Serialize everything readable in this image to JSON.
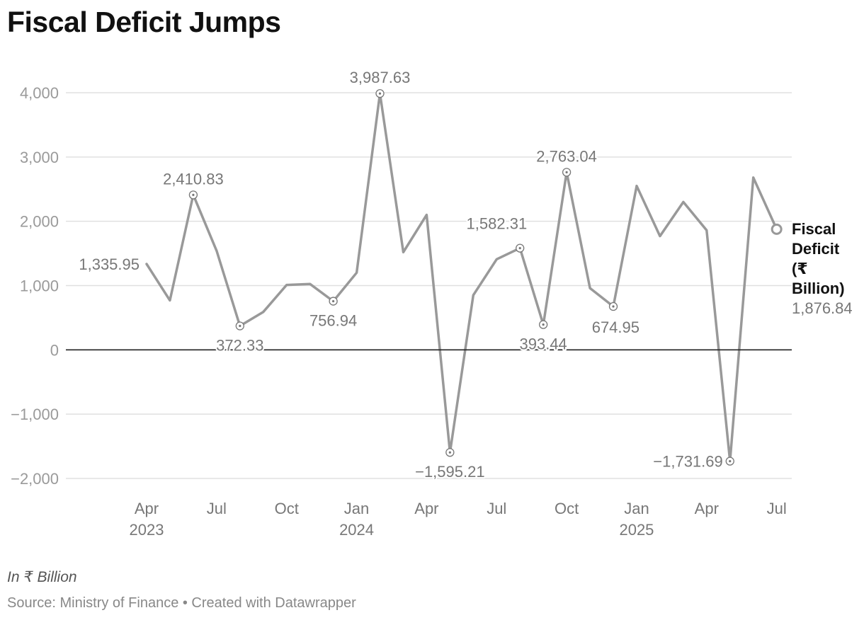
{
  "title": "Fiscal Deficit Jumps",
  "unit_note": "In ₹ Billion",
  "source": "Source: Ministry of Finance • Created with Datawrapper",
  "colors": {
    "line": "#999999",
    "grid": "#e0e0e0",
    "zero": "#222222"
  },
  "chart_data": {
    "type": "line",
    "title": "Fiscal Deficit Jumps",
    "ylim": [
      -2000,
      4000
    ],
    "yticks": [
      4000,
      3000,
      2000,
      1000,
      0,
      -1000,
      -2000
    ],
    "ytick_labels": [
      "4,000",
      "3,000",
      "2,000",
      "1,000",
      "0",
      "−1,000",
      "−2,000"
    ],
    "grid": true,
    "legend_position": "right of line end",
    "x": [
      "2023-04",
      "2023-05",
      "2023-06",
      "2023-07",
      "2023-08",
      "2023-09",
      "2023-10",
      "2023-11",
      "2023-12",
      "2024-01",
      "2024-02",
      "2024-03",
      "2024-04",
      "2024-05",
      "2024-06",
      "2024-07",
      "2024-08",
      "2024-09",
      "2024-10",
      "2024-11",
      "2024-12",
      "2025-01",
      "2025-02",
      "2025-03",
      "2025-04",
      "2025-05",
      "2025-06",
      "2025-07"
    ],
    "xticks": [
      {
        "x": "2023-04",
        "month": "Apr",
        "year": "2023"
      },
      {
        "x": "2023-07",
        "month": "Jul",
        "year": ""
      },
      {
        "x": "2023-10",
        "month": "Oct",
        "year": ""
      },
      {
        "x": "2024-01",
        "month": "Jan",
        "year": "2024"
      },
      {
        "x": "2024-04",
        "month": "Apr",
        "year": ""
      },
      {
        "x": "2024-07",
        "month": "Jul",
        "year": ""
      },
      {
        "x": "2024-10",
        "month": "Oct",
        "year": ""
      },
      {
        "x": "2025-01",
        "month": "Jan",
        "year": "2025"
      },
      {
        "x": "2025-04",
        "month": "Apr",
        "year": ""
      },
      {
        "x": "2025-07",
        "month": "Jul",
        "year": ""
      }
    ],
    "series": [
      {
        "name": "Fiscal Deficit (₹ Billion)",
        "legend_lines": [
          "Fiscal",
          "Deficit",
          "(₹",
          "Billion)"
        ],
        "last_value_label": "1,876.84",
        "values": [
          1335.95,
          770,
          2410.83,
          1540,
          372.33,
          590,
          1010,
          1025,
          756.94,
          1200,
          3987.63,
          1520,
          2100,
          -1595.21,
          850,
          1410,
          1582.31,
          393.44,
          2763.04,
          960,
          674.95,
          2550,
          1770,
          2300,
          1860,
          -1731.69,
          2680,
          1876.84
        ]
      }
    ],
    "annotations": [
      {
        "x": "2023-04",
        "value": 1335.95,
        "label": "1,335.95",
        "marker": false,
        "pos": "left"
      },
      {
        "x": "2023-06",
        "value": 2410.83,
        "label": "2,410.83",
        "marker": true,
        "pos": "above"
      },
      {
        "x": "2023-08",
        "value": 372.33,
        "label": "372.33",
        "marker": true,
        "pos": "below"
      },
      {
        "x": "2023-12",
        "value": 756.94,
        "label": "756.94",
        "marker": true,
        "pos": "below"
      },
      {
        "x": "2024-02",
        "value": 3987.63,
        "label": "3,987.63",
        "marker": true,
        "pos": "above"
      },
      {
        "x": "2024-05",
        "value": -1595.21,
        "label": "−1,595.21",
        "marker": true,
        "pos": "below"
      },
      {
        "x": "2024-08",
        "value": 1582.31,
        "label": "1,582.31",
        "marker": true,
        "pos": "above-left"
      },
      {
        "x": "2024-09",
        "value": 393.44,
        "label": "393.44",
        "marker": true,
        "pos": "below"
      },
      {
        "x": "2024-10",
        "value": 2763.04,
        "label": "2,763.04",
        "marker": true,
        "pos": "above"
      },
      {
        "x": "2024-12",
        "value": 674.95,
        "label": "674.95",
        "marker": true,
        "pos": "below-left"
      },
      {
        "x": "2025-05",
        "value": -1731.69,
        "label": "−1,731.69",
        "marker": true,
        "pos": "left"
      }
    ]
  }
}
